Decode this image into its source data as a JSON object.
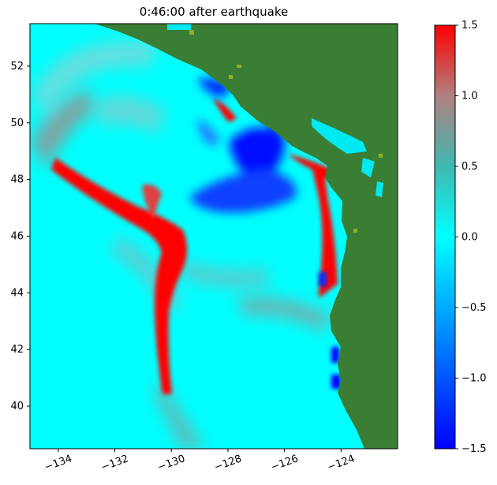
{
  "title": "0:46:00 after earthquake",
  "map": {
    "lon_range": [
      -135.0,
      -122.0
    ],
    "lat_range": [
      38.5,
      53.5
    ],
    "x_ticks": [
      "−134",
      "−132",
      "−130",
      "−128",
      "−126",
      "−124"
    ],
    "x_tick_values": [
      -134,
      -132,
      -130,
      -128,
      -126,
      -124
    ],
    "y_ticks": [
      "40",
      "42",
      "44",
      "46",
      "48",
      "50",
      "52"
    ],
    "y_tick_values": [
      40,
      42,
      44,
      46,
      48,
      50,
      52
    ],
    "colors": {
      "ocean_background": "#00ffff",
      "land": "#3a7d34",
      "positive_wave": "#ff0000",
      "negative_wave": "#0000ff"
    }
  },
  "colorbar": {
    "range": [
      -1.5,
      1.5
    ],
    "ticks": [
      "1.5",
      "1.0",
      "0.5",
      "0.0",
      "−0.5",
      "−1.0",
      "−1.5"
    ],
    "tick_values": [
      1.5,
      1.0,
      0.5,
      0.0,
      -0.5,
      -1.0,
      -1.5
    ],
    "gradient": [
      {
        "value": -1.5,
        "color": "#0000ff"
      },
      {
        "value": -0.75,
        "color": "#0080ff"
      },
      {
        "value": 0.0,
        "color": "#00ffff"
      },
      {
        "value": 0.5,
        "color": "#40b8b0"
      },
      {
        "value": 1.0,
        "color": "#b08080"
      },
      {
        "value": 1.5,
        "color": "#ff0000"
      }
    ]
  }
}
